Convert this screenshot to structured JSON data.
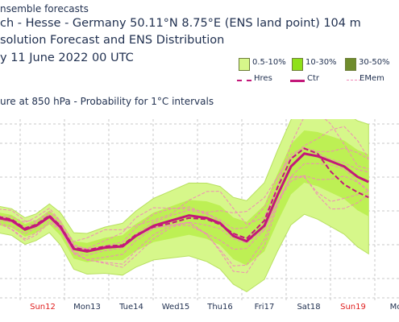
{
  "header": {
    "line1": "nsemble forecasts",
    "line2": "ch - Hesse - Germany 50.11°N 8.75°E (ENS land point) 104 m",
    "line3": "solution Forecast and ENS Distribution",
    "line4": "y 11 June 2022 00 UTC"
  },
  "legend": {
    "prob_bins": [
      {
        "label": "0.5-10%",
        "color": "#d6f78a"
      },
      {
        "label": "10-30%",
        "color": "#8fe01a"
      },
      {
        "label": "30-50%",
        "color": "#6f8c2c"
      }
    ],
    "lines": [
      {
        "label": "Hres",
        "color": "#c3187a",
        "style": "dashed"
      },
      {
        "label": "Ctr",
        "color": "#c3187a",
        "style": "solid"
      },
      {
        "label": "EMem",
        "color": "#f08ab8",
        "style": "dashed"
      }
    ]
  },
  "subtitle": "ure at 850 hPa - Probability for 1°C intervals",
  "chart_data": {
    "type": "line",
    "title": "ure at 850 hPa - Probability for 1°C intervals",
    "x_tick_labels": [
      {
        "label": "Sun12",
        "color": "#e02020"
      },
      {
        "label": "Mon13",
        "color": "#1f2f4f"
      },
      {
        "label": "Tue14",
        "color": "#1f2f4f"
      },
      {
        "label": "Wed15",
        "color": "#1f2f4f"
      },
      {
        "label": "Thu16",
        "color": "#1f2f4f"
      },
      {
        "label": "Fri17",
        "color": "#1f2f4f"
      },
      {
        "label": "Sat18",
        "color": "#1f2f4f"
      },
      {
        "label": "Sun19",
        "color": "#e02020"
      },
      {
        "label": "Mor",
        "color": "#1f2f4f"
      }
    ],
    "x_range_days": [
      -1,
      7.35
    ],
    "y_range_relative": [
      0,
      100
    ],
    "grid": true,
    "series": [
      {
        "name": "Ctr",
        "x": [
          -1.0,
          -0.7,
          -0.4,
          -0.15,
          0.15,
          0.4,
          0.7,
          1.0,
          1.4,
          1.8,
          2.1,
          2.5,
          2.9,
          3.3,
          3.7,
          4.0,
          4.3,
          4.6,
          5.0,
          5.3,
          5.6,
          5.9,
          6.2,
          6.5,
          6.8,
          7.1,
          7.35
        ],
        "values": [
          42,
          40,
          33,
          36,
          43,
          35,
          18,
          16,
          19,
          20,
          28,
          36,
          40,
          44,
          42,
          38,
          28,
          24,
          36,
          60,
          82,
          92,
          90,
          86,
          82,
          74,
          70
        ]
      },
      {
        "name": "Hres",
        "x": [
          -1.0,
          -0.7,
          -0.4,
          -0.15,
          0.15,
          0.4,
          0.7,
          1.0,
          1.4,
          1.8,
          2.1,
          2.5,
          2.9,
          3.3,
          3.7,
          4.0,
          4.3,
          4.6,
          5.0,
          5.3,
          5.6,
          5.9,
          6.2,
          6.5,
          6.8,
          7.1,
          7.35
        ],
        "values": [
          43,
          41,
          34,
          37,
          44,
          36,
          19,
          17,
          20,
          21,
          29,
          35,
          38,
          42,
          41,
          37,
          30,
          26,
          40,
          66,
          88,
          96,
          92,
          78,
          68,
          62,
          58
        ]
      }
    ]
  }
}
